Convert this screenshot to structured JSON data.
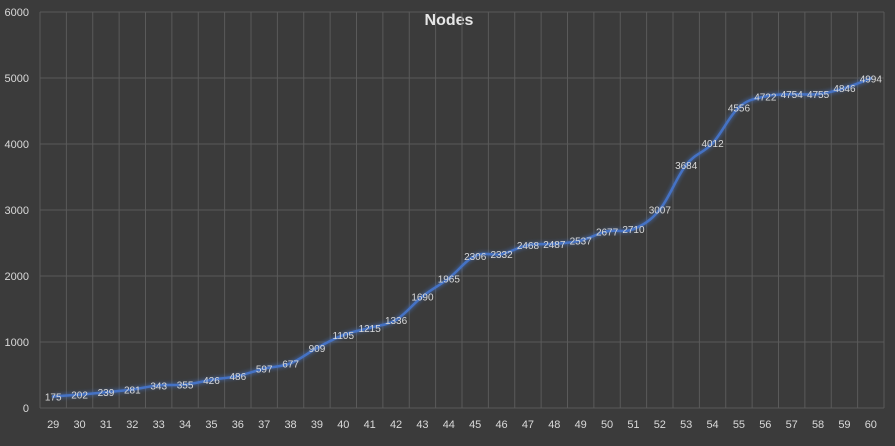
{
  "chart_data": {
    "type": "line",
    "title": "Nodes",
    "xlabel": "",
    "ylabel": "",
    "categories": [
      "29",
      "30",
      "31",
      "32",
      "33",
      "34",
      "35",
      "36",
      "37",
      "38",
      "39",
      "40",
      "41",
      "42",
      "43",
      "44",
      "45",
      "46",
      "47",
      "48",
      "49",
      "50",
      "51",
      "52",
      "53",
      "54",
      "55",
      "56",
      "57",
      "58",
      "59",
      "60"
    ],
    "series": [
      {
        "values": [
          175,
          202,
          239,
          281,
          343,
          355,
          426,
          486,
          597,
          677,
          909,
          1105,
          1215,
          1336,
          1690,
          1965,
          2306,
          2332,
          2468,
          2487,
          2537,
          2677,
          2710,
          3007,
          3684,
          4012,
          4556,
          4722,
          4754,
          4755,
          4846,
          4994
        ]
      }
    ],
    "ylim": [
      0,
      6000
    ],
    "yticks": [
      "0",
      "1000",
      "2000",
      "3000",
      "4000",
      "5000",
      "6000"
    ],
    "grid": true,
    "legend": "none",
    "colors": {
      "background": "#3b3b3b",
      "line": "#4472c4",
      "grid": "#5a5a5a",
      "text": "#d9d9d9"
    }
  }
}
